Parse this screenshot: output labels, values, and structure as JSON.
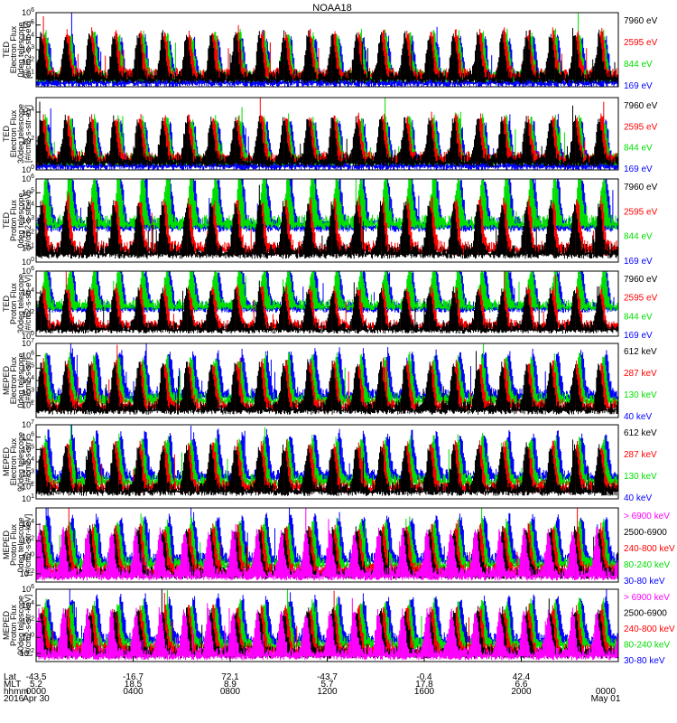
{
  "title": "NOAA18",
  "colors": {
    "black": "#000000",
    "red": "#ff0000",
    "green": "#00e000",
    "blue": "#0000ff",
    "magenta": "#ff00ff"
  },
  "chart_data": [
    {
      "type": "line",
      "ylabel": [
        "TED",
        "Electron Flux",
        "0deg telescope",
        "[#/cm2-s-str-eV]"
      ],
      "yscale": "log",
      "ylim_exp": [
        0,
        6
      ],
      "ytick_exp": [
        1,
        2,
        3,
        4,
        5,
        6
      ],
      "series": [
        {
          "name": "7960 eV",
          "color": "black"
        },
        {
          "name": "2595 eV",
          "color": "red"
        },
        {
          "name": "844 eV",
          "color": "green"
        },
        {
          "name": "169 eV",
          "color": "blue"
        }
      ]
    },
    {
      "type": "line",
      "ylabel": [
        "TED",
        "Electron Flux",
        "30deg telescope",
        "[#/cm2-s-str-eV]"
      ],
      "yscale": "log",
      "ylim_exp": [
        0,
        5
      ],
      "ytick_exp": [
        0,
        2,
        4
      ],
      "series": [
        {
          "name": "7960 eV",
          "color": "black"
        },
        {
          "name": "2595 eV",
          "color": "red"
        },
        {
          "name": "844 eV",
          "color": "green"
        },
        {
          "name": "169 eV",
          "color": "blue"
        }
      ]
    },
    {
      "type": "line",
      "ylabel": [
        "TED",
        "Proton Flux",
        "0deg telescope",
        "[#/cm2-s-str-eV]"
      ],
      "yscale": "log",
      "ylim_exp": [
        0,
        6
      ],
      "ytick_exp": [
        0,
        1,
        2,
        3,
        4,
        5,
        6
      ],
      "series": [
        {
          "name": "7960 eV",
          "color": "black"
        },
        {
          "name": "2595 eV",
          "color": "red"
        },
        {
          "name": "844 eV",
          "color": "green"
        },
        {
          "name": "169 eV",
          "color": "blue"
        }
      ]
    },
    {
      "type": "line",
      "ylabel": [
        "TED",
        "Proton Flux",
        "30deg telescope",
        "[#/cm2-s-str-eV]"
      ],
      "yscale": "log",
      "ylim_exp": [
        0,
        6
      ],
      "ytick_exp": [
        0,
        2,
        4,
        6
      ],
      "series": [
        {
          "name": "7960 eV",
          "color": "black"
        },
        {
          "name": "2595 eV",
          "color": "red"
        },
        {
          "name": "844 eV",
          "color": "green"
        },
        {
          "name": "169 eV",
          "color": "blue"
        }
      ]
    },
    {
      "type": "line",
      "ylabel": [
        "MEPED",
        "Electron Flux",
        "0deg telescope",
        "[#/cm2-s-str]"
      ],
      "yscale": "log",
      "ylim_exp": [
        1,
        7
      ],
      "ytick_exp": [
        2,
        3,
        4,
        5,
        6,
        7
      ],
      "series": [
        {
          "name": "612 keV",
          "color": "black"
        },
        {
          "name": "287 keV",
          "color": "red"
        },
        {
          "name": "130 keV",
          "color": "green"
        },
        {
          "name": "40 keV",
          "color": "blue"
        }
      ]
    },
    {
      "type": "line",
      "ylabel": [
        "MEPED",
        "Electron Flux",
        "90deg telescope",
        "[#/cm2-s-str]"
      ],
      "yscale": "log",
      "ylim_exp": [
        1,
        7
      ],
      "ytick_exp": [
        1,
        2,
        3,
        4,
        5,
        6,
        7
      ],
      "series": [
        {
          "name": "612 keV",
          "color": "black"
        },
        {
          "name": "287 keV",
          "color": "red"
        },
        {
          "name": "130 keV",
          "color": "green"
        },
        {
          "name": "40 keV",
          "color": "blue"
        }
      ]
    },
    {
      "type": "line",
      "ylabel": [
        "MEPED",
        "Proton Flux",
        "0deg telescope",
        "[#/cm2-s-str-keV]"
      ],
      "yscale": "log",
      "ylim_exp": [
        -3,
        6
      ],
      "ytick_exp": [
        -2,
        0,
        2,
        4
      ],
      "series": [
        {
          "name": "> 6900 keV",
          "color": "magenta"
        },
        {
          "name": "2500-6900",
          "color": "black"
        },
        {
          "name": "240-800 keV",
          "color": "red"
        },
        {
          "name": "80-240 keV",
          "color": "green"
        },
        {
          "name": "30-80 keV",
          "color": "blue"
        }
      ]
    },
    {
      "type": "line",
      "ylabel": [
        "MEPED",
        "Proton Flux",
        "90deg telescope",
        "[#/cm2-s-str-keV]"
      ],
      "yscale": "log",
      "ylim_exp": [
        -3,
        6
      ],
      "ytick_exp": [
        -2,
        0,
        2,
        4,
        6
      ],
      "series": [
        {
          "name": "> 6900 keV",
          "color": "magenta"
        },
        {
          "name": "2500-6900",
          "color": "black"
        },
        {
          "name": "240-800 keV",
          "color": "red"
        },
        {
          "name": "80-240 keV",
          "color": "green"
        },
        {
          "name": "30-80 keV",
          "color": "blue"
        }
      ]
    }
  ],
  "xaxis": {
    "row_labels": [
      "Lat",
      "MLT",
      "hhmm",
      "2016"
    ],
    "ticks": [
      {
        "lat": "-43.5",
        "mlt": "5.2",
        "hhmm": "0000",
        "date": "Apr 30"
      },
      {
        "lat": "-16.7",
        "mlt": "18.5",
        "hhmm": "0400",
        "date": ""
      },
      {
        "lat": "72.1",
        "mlt": "8.9",
        "hhmm": "0800",
        "date": ""
      },
      {
        "lat": "-43.7",
        "mlt": "5.7",
        "hhmm": "1200",
        "date": ""
      },
      {
        "lat": "-0.4",
        "mlt": "17.8",
        "hhmm": "1600",
        "date": ""
      },
      {
        "lat": "42.4",
        "mlt": "6.6",
        "hhmm": "2000",
        "date": ""
      },
      {
        "lat": "",
        "mlt": "",
        "hhmm": "0000",
        "date": "May 01"
      }
    ]
  }
}
